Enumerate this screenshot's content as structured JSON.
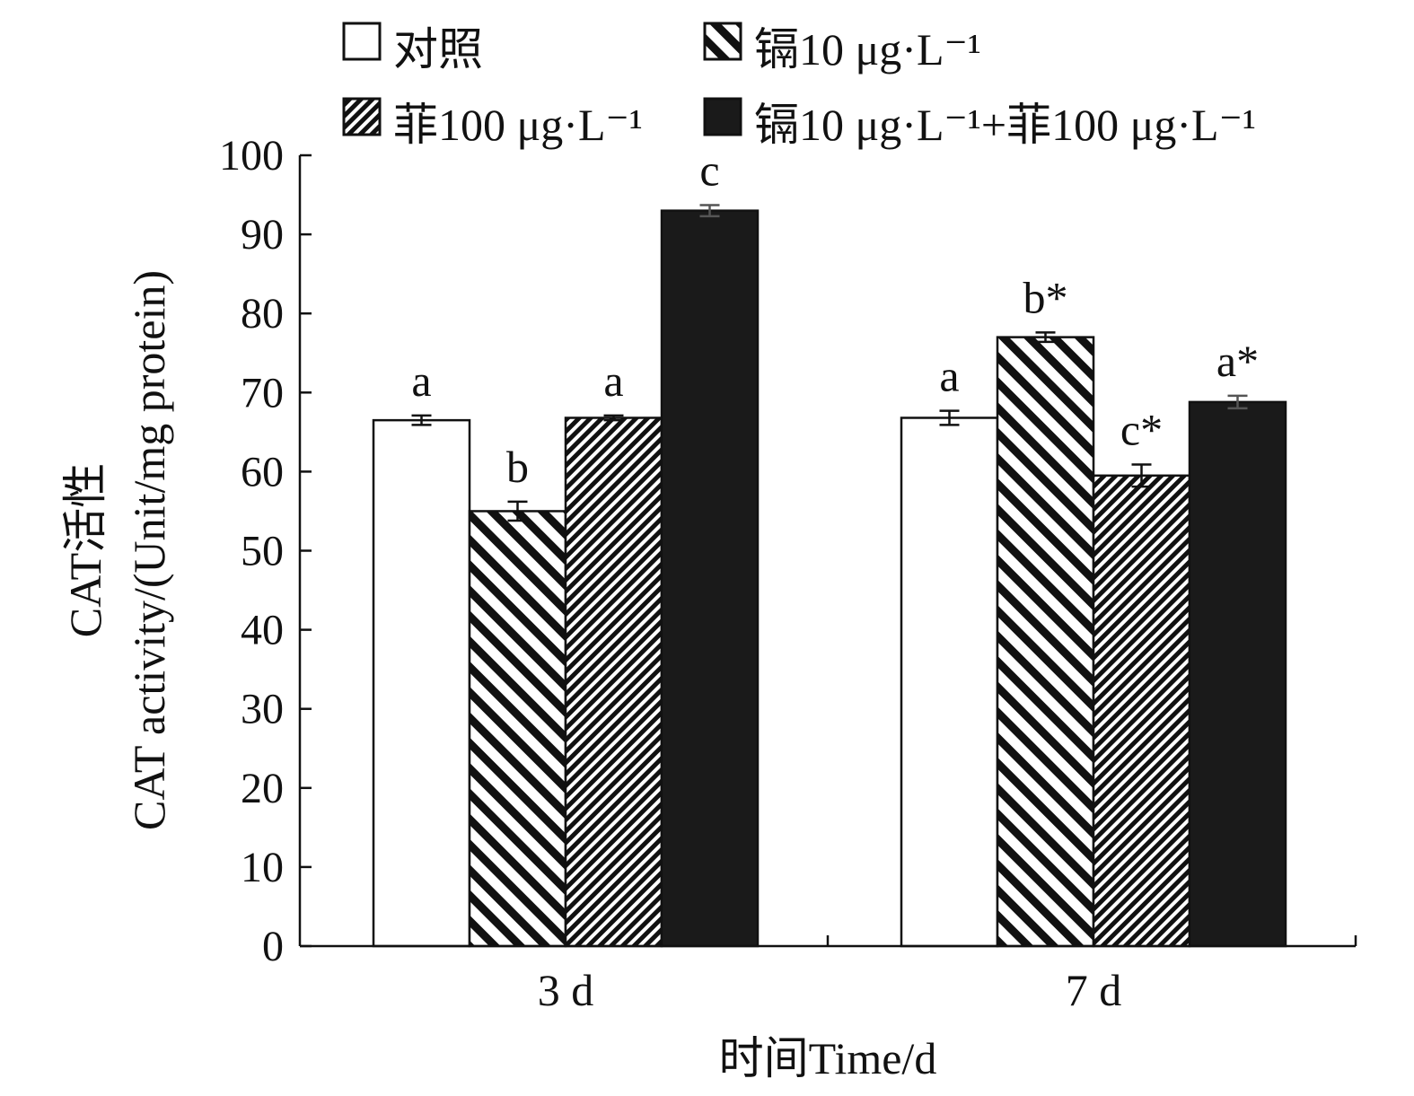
{
  "chart_data": {
    "type": "bar",
    "categories": [
      "3 d",
      "7 d"
    ],
    "series": [
      {
        "name": "对照",
        "fill": "white",
        "values": [
          66.5,
          66.8
        ],
        "errors": [
          0.6,
          0.9
        ],
        "labels": [
          "a",
          "a"
        ]
      },
      {
        "name": "镉10 μg·L⁻¹",
        "fill": "hatch-wide",
        "values": [
          55.0,
          77.0
        ],
        "errors": [
          1.2,
          0.6
        ],
        "labels": [
          "b",
          "b*"
        ]
      },
      {
        "name": "菲100 μg·L⁻¹",
        "fill": "hatch-dense",
        "values": [
          66.8,
          59.5
        ],
        "errors": [
          0.3,
          1.4
        ],
        "labels": [
          "a",
          "c*"
        ]
      },
      {
        "name": "镉10 μg·L⁻¹+菲100 μg·L⁻¹",
        "fill": "black",
        "values": [
          93.0,
          68.8
        ],
        "errors": [
          0.7,
          0.8
        ],
        "labels": [
          "c",
          "a*"
        ]
      }
    ],
    "xlabel": "时间Time/d",
    "ylabel_cn": "CAT活性",
    "ylabel_en": "CAT activity/(Unit/mg protein)",
    "ylim": [
      0,
      100
    ],
    "yticks": [
      0,
      10,
      20,
      30,
      40,
      50,
      60,
      70,
      80,
      90,
      100
    ],
    "legend_position": "top",
    "colors": {
      "bar_black": "#1a1a1a",
      "outline": "#111111"
    }
  }
}
